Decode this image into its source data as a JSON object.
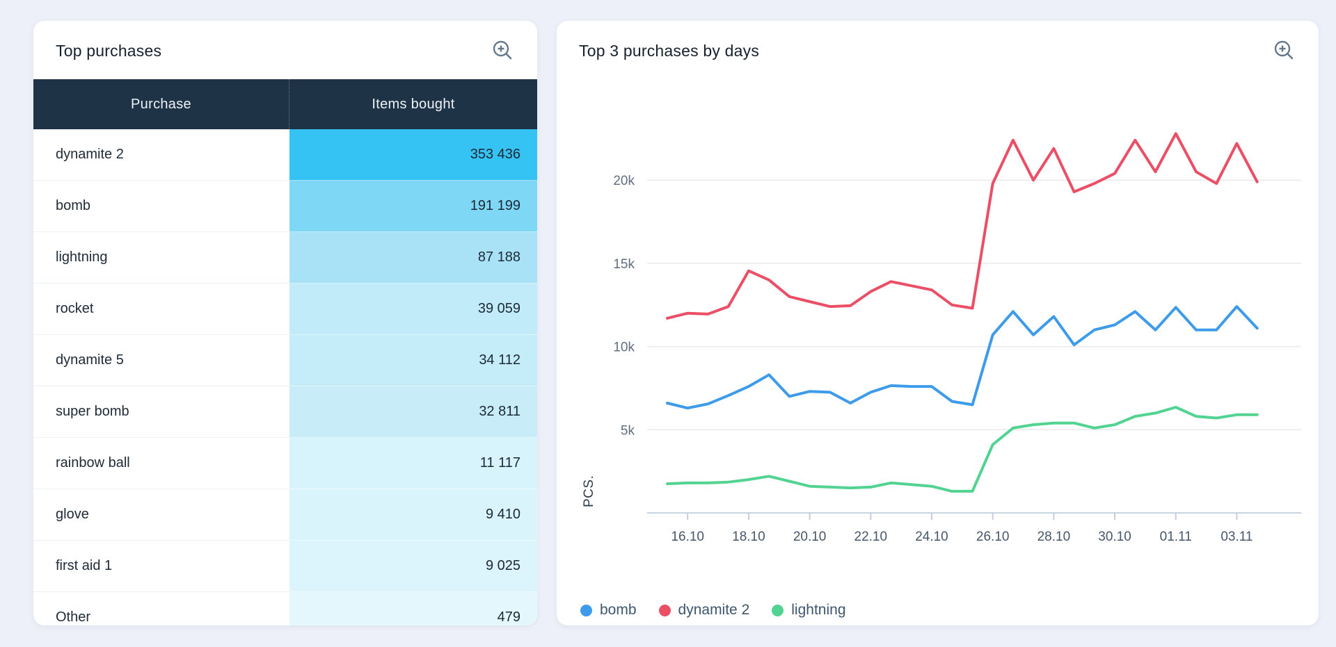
{
  "page": {
    "background": "#edf0f9"
  },
  "left_card": {
    "title": "Top purchases",
    "zoom_icon": "magnifier-plus-icon",
    "icon_color": "#64788c",
    "table": {
      "header_bg": "#1f3347",
      "columns": [
        "Purchase",
        "Items bought"
      ],
      "rows": [
        {
          "name": "dynamite 2",
          "value": "353 436",
          "value_bg": "#35c3f3"
        },
        {
          "name": "bomb",
          "value": "191 199",
          "value_bg": "#7ed8f5"
        },
        {
          "name": "lightning",
          "value": "87 188",
          "value_bg": "#a9e2f7"
        },
        {
          "name": "rocket",
          "value": "39 059",
          "value_bg": "#c2ebf9"
        },
        {
          "name": "dynamite 5",
          "value": "34 112",
          "value_bg": "#c5ecf9"
        },
        {
          "name": "super bomb",
          "value": "32 811",
          "value_bg": "#c8edf9"
        },
        {
          "name": "rainbow ball",
          "value": "11 117",
          "value_bg": "#d7f3fb"
        },
        {
          "name": "glove",
          "value": "9 410",
          "value_bg": "#daf4fb"
        },
        {
          "name": "first aid 1",
          "value": "9 025",
          "value_bg": "#dcf4fc"
        },
        {
          "name": "Other",
          "value": "479",
          "value_bg": "#e3f7fd"
        }
      ]
    }
  },
  "right_card": {
    "title": "Top 3 purchases by days",
    "zoom_icon": "magnifier-plus-icon",
    "icon_color": "#64788c"
  },
  "chart_data": {
    "type": "line",
    "title": "Top 3 purchases by days",
    "xlabel": "",
    "ylabel": "PCS.",
    "ylim": [
      0,
      23700
    ],
    "grid": "horizontal",
    "legend_position": "bottom-left",
    "y_ticks": [
      {
        "label": "5k",
        "value": 5000
      },
      {
        "label": "10k",
        "value": 10000
      },
      {
        "label": "15k",
        "value": 15000
      },
      {
        "label": "20k",
        "value": 20000
      }
    ],
    "n_points": 30,
    "x_tick_labels": [
      "16.10",
      "18.10",
      "20.10",
      "22.10",
      "24.10",
      "26.10",
      "28.10",
      "30.10",
      "01.11",
      "03.11"
    ],
    "x_tick_indices": [
      1,
      4,
      7,
      10,
      13,
      16,
      19,
      22,
      25,
      28
    ],
    "axis_color": "#c9d4e3",
    "grid_color": "#e9e9ec",
    "series": [
      {
        "name": "dynamite 2",
        "color": "#ea4f66",
        "values": [
          11700,
          12000,
          11950,
          12400,
          14550,
          14000,
          13000,
          12700,
          12400,
          12450,
          13300,
          13900,
          13650,
          13400,
          12500,
          12300,
          19800,
          22400,
          20000,
          21900,
          19300,
          19800,
          20400,
          22400,
          20500,
          22800,
          20500,
          19800,
          22200,
          19900
        ]
      },
      {
        "name": "bomb",
        "color": "#3d9be9",
        "values": [
          6600,
          6300,
          6550,
          7050,
          7600,
          8300,
          7000,
          7300,
          7250,
          6600,
          7250,
          7650,
          7600,
          7600,
          6700,
          6500,
          10700,
          12100,
          10700,
          11800,
          10100,
          11000,
          11300,
          12100,
          11000,
          12350,
          11000,
          11000,
          12400,
          11100
        ]
      },
      {
        "name": "lightning",
        "color": "#53d391",
        "values": [
          1750,
          1800,
          1800,
          1850,
          2000,
          2200,
          1900,
          1600,
          1550,
          1500,
          1550,
          1800,
          1700,
          1600,
          1300,
          1300,
          4100,
          5100,
          5300,
          5400,
          5400,
          5100,
          5300,
          5800,
          6000,
          6350,
          5800,
          5700,
          5900,
          5900
        ]
      }
    ],
    "legend": [
      {
        "label": "bomb",
        "color": "#3d9be9"
      },
      {
        "label": "dynamite 2",
        "color": "#ea4f66"
      },
      {
        "label": "lightning",
        "color": "#53d391"
      }
    ]
  }
}
